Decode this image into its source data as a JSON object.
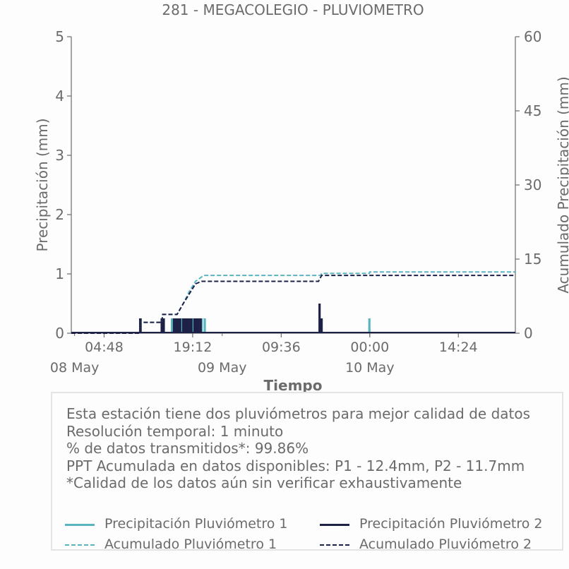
{
  "chart_data": {
    "type": "bar",
    "title": "281 - MEGACOLEGIO - PLUVIOMETRO",
    "xlabel": "Tiempo",
    "ylabel": "Precipitación (mm)",
    "y2label": "Acumulado Precipitación (mm)",
    "ylim": [
      0,
      5
    ],
    "y2lim": [
      0,
      60
    ],
    "yticks": [
      "0",
      "1",
      "2",
      "3",
      "4",
      "5"
    ],
    "y2ticks": [
      "0",
      "15",
      "30",
      "45",
      "60"
    ],
    "xlim": [
      "2025-05-07T23:28",
      "2025-05-10T23:40"
    ],
    "xticks": [
      {
        "t": "2025-05-08T04:48",
        "time": "04:48",
        "date": "08 May"
      },
      {
        "t": "2025-05-08T19:12",
        "time": "19:12",
        "date": "09 May"
      },
      {
        "t": "2025-05-09T09:36",
        "time": "09:36",
        "date": ""
      },
      {
        "t": "2025-05-10T00:00",
        "time": "00:00",
        "date": "10 May"
      },
      {
        "t": "2025-05-10T14:24",
        "time": "14:24",
        "date": ""
      }
    ],
    "colors": {
      "p1": "#5ab4bf",
      "p2": "#1e2147",
      "axis": "#6b6b6b",
      "text": "#6b6b6b"
    },
    "series": [
      {
        "name": "Precipitación Pluviómetro 1",
        "kind": "bar",
        "color": "#5ab4bf",
        "points": [
          [
            "2025-05-08T15:50",
            0.25
          ],
          [
            "2025-05-08T16:00",
            0.25
          ],
          [
            "2025-05-08T16:20",
            0.25
          ],
          [
            "2025-05-08T17:00",
            0.25
          ],
          [
            "2025-05-08T17:30",
            0.25
          ],
          [
            "2025-05-08T18:10",
            0.25
          ],
          [
            "2025-05-08T18:40",
            0.25
          ],
          [
            "2025-05-08T19:20",
            0.25
          ],
          [
            "2025-05-08T20:00",
            0.25
          ],
          [
            "2025-05-08T20:40",
            0.25
          ],
          [
            "2025-05-08T21:10",
            0.25
          ],
          [
            "2025-05-09T23:56",
            0.25
          ]
        ]
      },
      {
        "name": "Precipitación Pluviómetro 2",
        "kind": "bar",
        "color": "#1e2147",
        "points": [
          [
            "2025-05-08T10:40",
            0.25
          ],
          [
            "2025-05-08T10:44",
            0.25
          ],
          [
            "2025-05-08T14:10",
            0.25
          ],
          [
            "2025-05-08T14:20",
            0.25
          ],
          [
            "2025-05-08T14:30",
            0.25
          ],
          [
            "2025-05-08T16:10",
            0.25
          ],
          [
            "2025-05-08T16:30",
            0.25
          ],
          [
            "2025-05-08T16:50",
            0.25
          ],
          [
            "2025-05-08T17:10",
            0.25
          ],
          [
            "2025-05-08T17:40",
            0.25
          ],
          [
            "2025-05-08T18:00",
            0.25
          ],
          [
            "2025-05-08T18:20",
            0.25
          ],
          [
            "2025-05-08T18:30",
            0.25
          ],
          [
            "2025-05-08T18:50",
            0.25
          ],
          [
            "2025-05-08T19:00",
            0.25
          ],
          [
            "2025-05-08T19:30",
            0.25
          ],
          [
            "2025-05-08T19:50",
            0.25
          ],
          [
            "2025-05-08T20:10",
            0.25
          ],
          [
            "2025-05-08T20:30",
            0.25
          ],
          [
            "2025-05-09T15:50",
            0.5
          ],
          [
            "2025-05-09T16:10",
            0.25
          ]
        ]
      },
      {
        "name": "Acumulado Pluviómetro 1",
        "kind": "dashed",
        "color": "#5ab4bf",
        "points": [
          [
            "2025-05-07T23:28",
            0
          ],
          [
            "2025-05-08T10:35",
            0
          ],
          [
            "2025-05-08T10:40",
            2.2
          ],
          [
            "2025-05-08T14:10",
            2.2
          ],
          [
            "2025-05-08T14:20",
            3.8
          ],
          [
            "2025-05-08T16:40",
            3.8
          ],
          [
            "2025-05-08T17:40",
            6.0
          ],
          [
            "2025-05-08T18:40",
            8.5
          ],
          [
            "2025-05-08T19:40",
            10.5
          ],
          [
            "2025-05-08T21:00",
            11.7
          ],
          [
            "2025-05-09T16:00",
            11.7
          ],
          [
            "2025-05-09T16:10",
            12.1
          ],
          [
            "2025-05-09T23:56",
            12.1
          ],
          [
            "2025-05-10T00:00",
            12.4
          ],
          [
            "2025-05-10T23:40",
            12.4
          ]
        ]
      },
      {
        "name": "Acumulado Pluviómetro 2",
        "kind": "dashed",
        "color": "#1e2147",
        "points": [
          [
            "2025-05-07T23:28",
            0
          ],
          [
            "2025-05-08T10:35",
            0
          ],
          [
            "2025-05-08T10:40",
            2.2
          ],
          [
            "2025-05-08T14:10",
            2.2
          ],
          [
            "2025-05-08T14:20",
            3.8
          ],
          [
            "2025-05-08T16:40",
            3.8
          ],
          [
            "2025-05-08T17:40",
            6.0
          ],
          [
            "2025-05-08T18:40",
            8.0
          ],
          [
            "2025-05-08T19:40",
            10.0
          ],
          [
            "2025-05-08T20:40",
            10.5
          ],
          [
            "2025-05-09T15:40",
            10.5
          ],
          [
            "2025-05-09T16:10",
            11.7
          ],
          [
            "2025-05-10T23:40",
            11.7
          ]
        ]
      }
    ]
  },
  "info": {
    "line1": "Esta estación tiene dos pluviómetros para mejor calidad de datos",
    "line2": "Resolución temporal: 1 minuto",
    "line3": "% de datos transmitidos*: 99.86%",
    "line4": "PPT Acumulada en datos disponibles: P1 - 12.4mm, P2 - 11.7mm",
    "line5": "*Calidad de los datos aún sin verificar exhaustivamente"
  },
  "legend": {
    "p1_precip": "Precipitación Pluviómetro 1",
    "p2_precip": "Precipitación Pluviómetro 2",
    "p1_cum": "Acumulado Pluviómetro 1",
    "p2_cum": "Acumulado Pluviómetro 2"
  }
}
